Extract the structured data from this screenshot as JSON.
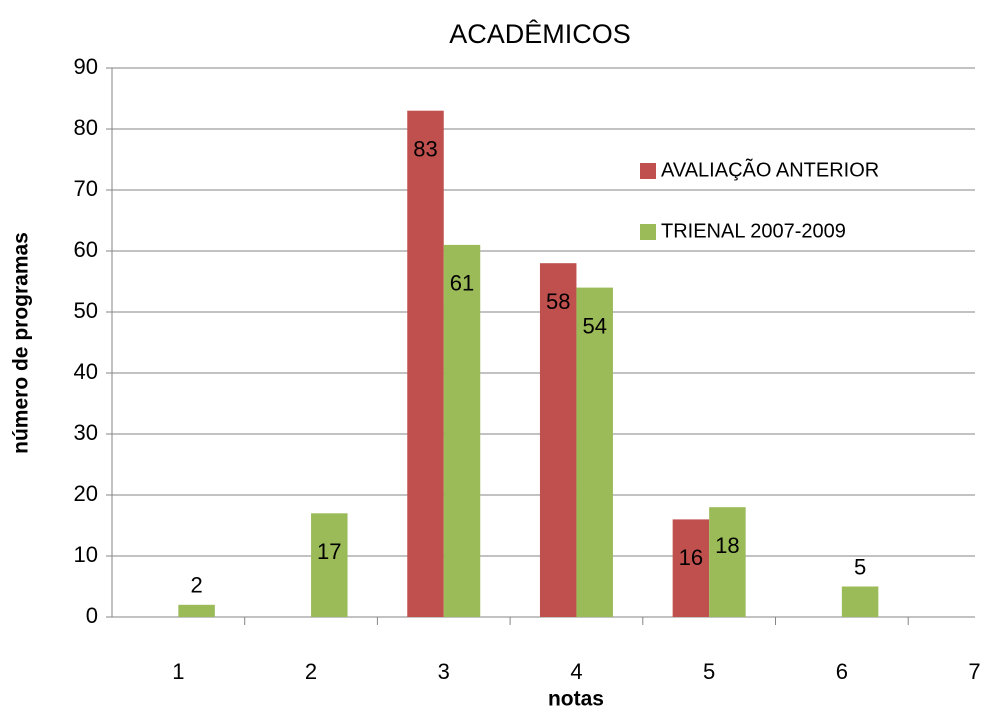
{
  "chart_data": {
    "type": "bar",
    "title": "ACADÊMICOS",
    "x_label": "notas",
    "y_label": "número de programas",
    "categories": [
      "1",
      "2",
      "3",
      "4",
      "5",
      "6",
      "7"
    ],
    "series": [
      {
        "name": "AVALIAÇÃO ANTERIOR",
        "color": "#c0504d",
        "values": [
          null,
          null,
          83,
          58,
          16,
          null,
          null
        ]
      },
      {
        "name": "TRIENAL 2007-2009",
        "color": "#9bbb59",
        "values": [
          2,
          17,
          61,
          54,
          18,
          5,
          null
        ]
      }
    ],
    "ylim": [
      0,
      90
    ],
    "yticks": [
      0,
      10,
      20,
      30,
      40,
      50,
      60,
      70,
      80,
      90
    ],
    "grid": true,
    "legend": "upper right"
  }
}
